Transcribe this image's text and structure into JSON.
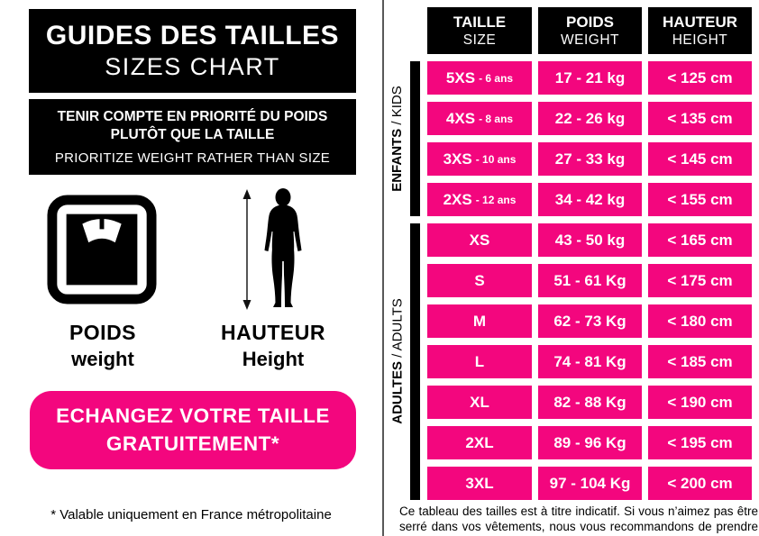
{
  "colors": {
    "pink": "#F3067E",
    "black": "#000000",
    "divider": "#595959"
  },
  "left": {
    "title_fr": "GUIDES DES TAILLES",
    "title_en": "SIZES CHART",
    "note_fr_line1": "TENIR COMPTE EN PRIORITÉ DU POIDS",
    "note_fr_line2": "PLUTÔT QUE LA TAILLE",
    "note_en": "PRIORITIZE WEIGHT RATHER THAN SIZE",
    "weight_label_fr": "POIDS",
    "weight_label_en": "weight",
    "height_label_fr": "HAUTEUR",
    "height_label_en": "Height",
    "button_line1": "ECHANGEZ VOTRE TAILLE",
    "button_line2": "GRATUITEMENT*",
    "footnote": "* Valable uniquement en France métropolitaine"
  },
  "table": {
    "headers": [
      {
        "fr": "TAILLE",
        "en": "SIZE"
      },
      {
        "fr": "POIDS",
        "en": "WEIGHT"
      },
      {
        "fr": "HAUTEUR",
        "en": "HEIGHT"
      }
    ],
    "groups": [
      {
        "label_fr": "ENFANTS",
        "sep": " / ",
        "label_en": "KIDS",
        "rows": [
          {
            "size": "5XS",
            "age": "- 6 ans",
            "weight": "17 - 21 kg",
            "height": "< 125 cm"
          },
          {
            "size": "4XS",
            "age": "- 8 ans",
            "weight": "22 - 26 kg",
            "height": "< 135 cm"
          },
          {
            "size": "3XS",
            "age": "- 10 ans",
            "weight": "27 - 33 kg",
            "height": "< 145 cm"
          },
          {
            "size": "2XS",
            "age": "- 12 ans",
            "weight": "34 - 42 kg",
            "height": "< 155 cm"
          }
        ]
      },
      {
        "label_fr": "ADULTES",
        "sep": " / ",
        "label_en": "ADULTS",
        "rows": [
          {
            "size": "XS",
            "age": "",
            "weight": "43 - 50 kg",
            "height": "< 165 cm"
          },
          {
            "size": "S",
            "age": "",
            "weight": "51 - 61 Kg",
            "height": "< 175 cm"
          },
          {
            "size": "M",
            "age": "",
            "weight": "62 - 73 Kg",
            "height": "< 180 cm"
          },
          {
            "size": "L",
            "age": "",
            "weight": "74 - 81 Kg",
            "height": "< 185 cm"
          },
          {
            "size": "XL",
            "age": "",
            "weight": "82 - 88 Kg",
            "height": "< 190 cm"
          },
          {
            "size": "2XL",
            "age": "",
            "weight": "89 - 96 Kg",
            "height": "< 195 cm"
          },
          {
            "size": "3XL",
            "age": "",
            "weight": "97 - 104 Kg",
            "height": "< 200 cm"
          }
        ]
      }
    ],
    "disclaimer": "Ce tableau des tailles est à titre indicatif. Si vous n’aimez pas être serré dans vos vêtements, nous vous recommandons de prendre une taille au dessus"
  }
}
